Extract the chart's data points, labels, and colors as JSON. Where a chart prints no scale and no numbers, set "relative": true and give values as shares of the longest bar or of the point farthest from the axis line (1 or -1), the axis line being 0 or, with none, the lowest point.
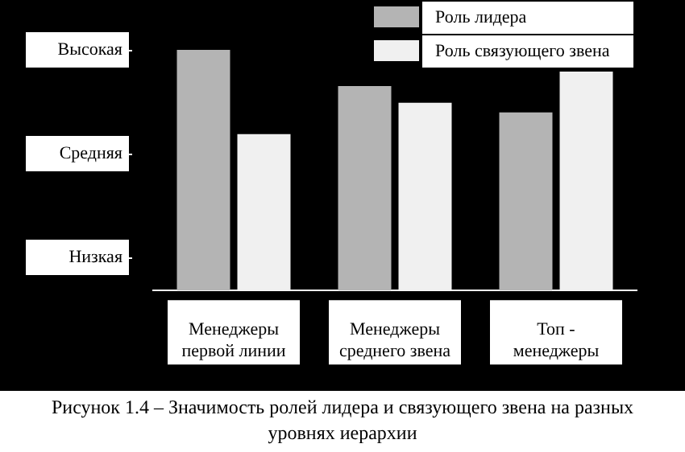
{
  "chart_data": {
    "type": "bar",
    "title": "Рисунок 1.4 – Значимость ролей лидера и связующего звена на разных уровнях иерархии",
    "categories": [
      "Менеджеры первой линии",
      "Менеджеры среднего звена",
      "Топ - менеджеры"
    ],
    "series": [
      {
        "name": "Роль лидера",
        "color": "#b4b4b4",
        "values": [
          1,
          0.85,
          0.74
        ]
      },
      {
        "name": "Роль связующего звена",
        "color": "#f0f0f0",
        "values": [
          0.65,
          0.78,
          0.91
        ]
      }
    ],
    "relative": true,
    "annotations": [
      "Высокая",
      "Средняя",
      "Низкая"
    ],
    "legend": "top right"
  }
}
